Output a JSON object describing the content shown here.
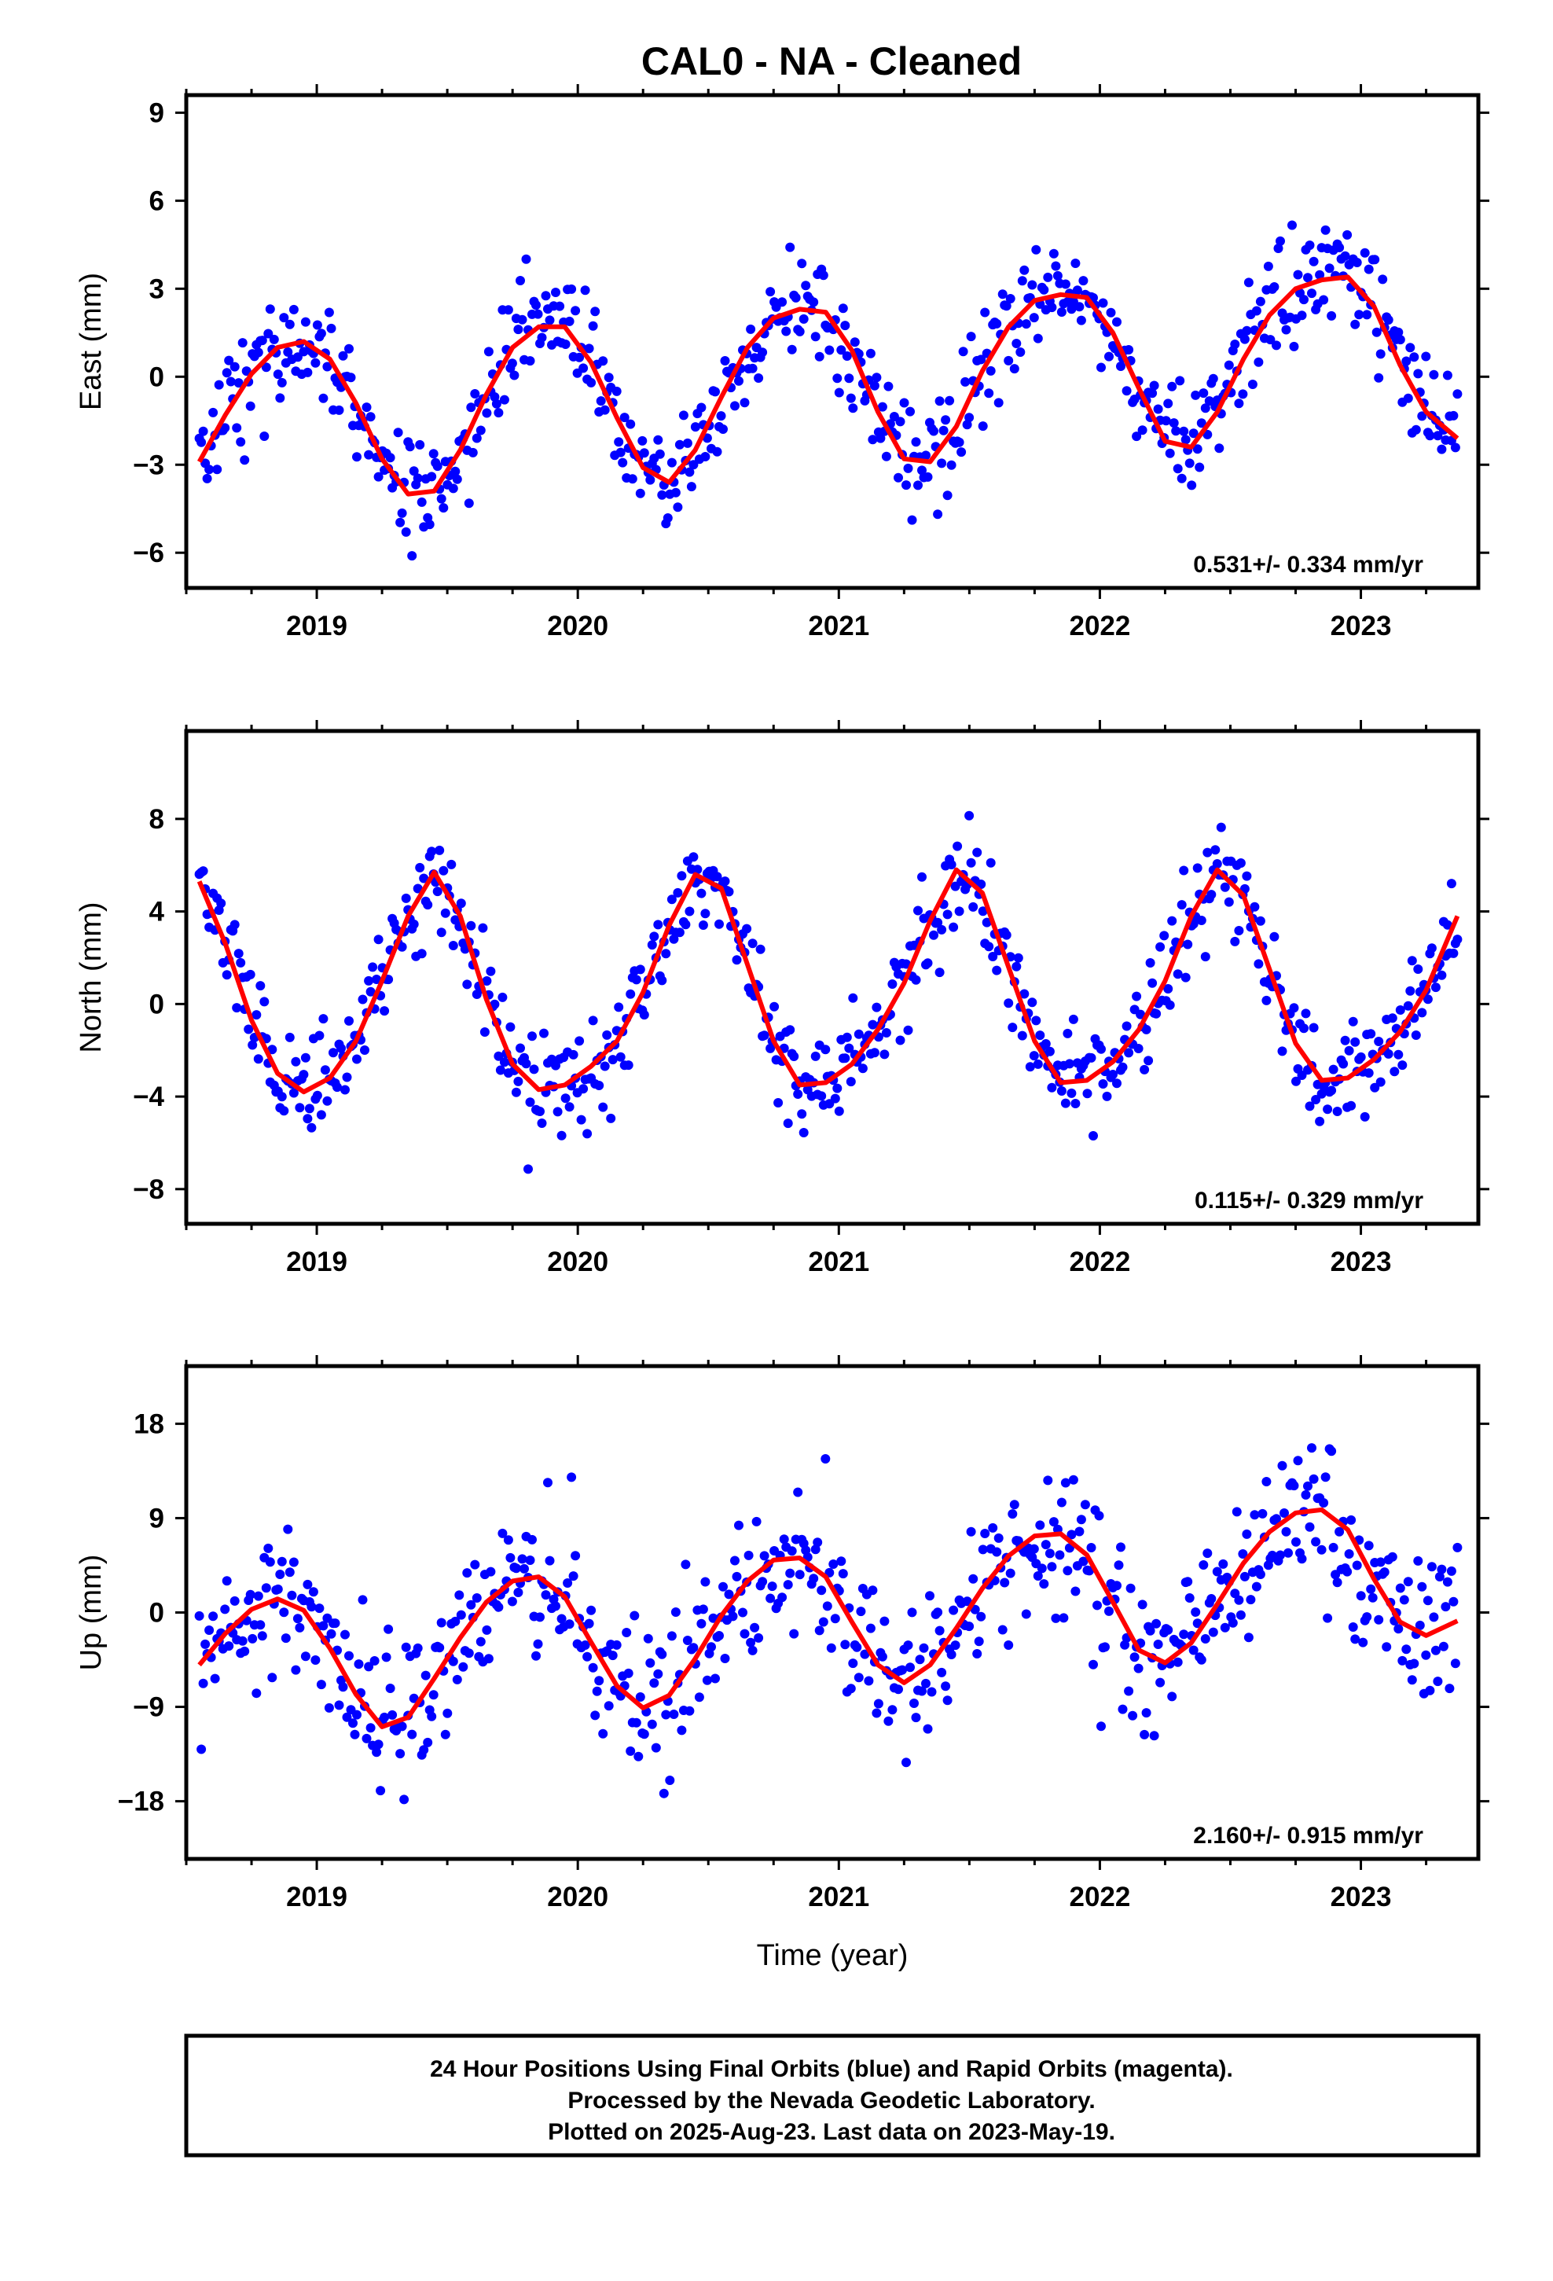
{
  "title": "CAL0  - NA - Cleaned",
  "footer": {
    "line1": "24 Hour Positions Using Final Orbits (blue) and Rapid Orbits (magenta).",
    "line2": "Processed by the Nevada Geodetic Laboratory.",
    "line3": "Plotted on 2025-Aug-23. Last data on 2023-May-19."
  },
  "colors": {
    "observations": "#0000ff",
    "fit": "#ff0000",
    "frame": "#000000"
  },
  "chart_data": [
    {
      "type": "scatter",
      "component": "east",
      "ylabel": "East (mm)",
      "xlabel": "",
      "xlim": [
        2018.5,
        2023.45
      ],
      "ylim": [
        -7.2,
        9.6
      ],
      "yticks": [
        -6,
        -3,
        0,
        3,
        6,
        9
      ],
      "xticks": [
        2019,
        2020,
        2021,
        2022,
        2023
      ],
      "rate_label": "0.531+/- 0.334 mm/yr",
      "grid": false,
      "fit": {
        "x": [
          2018.55,
          2018.65,
          2018.75,
          2018.85,
          2018.95,
          2019.05,
          2019.15,
          2019.25,
          2019.35,
          2019.45,
          2019.55,
          2019.65,
          2019.75,
          2019.85,
          2019.95,
          2020.05,
          2020.15,
          2020.25,
          2020.35,
          2020.45,
          2020.55,
          2020.65,
          2020.75,
          2020.85,
          2020.95,
          2021.05,
          2021.15,
          2021.25,
          2021.35,
          2021.45,
          2021.55,
          2021.65,
          2021.75,
          2021.85,
          2021.95,
          2022.05,
          2022.15,
          2022.25,
          2022.35,
          2022.45,
          2022.55,
          2022.65,
          2022.75,
          2022.85,
          2022.95,
          2023.05,
          2023.15,
          2023.25,
          2023.37
        ],
        "y": [
          -2.9,
          -1.3,
          0.1,
          1.0,
          1.2,
          0.6,
          -0.9,
          -2.8,
          -4.0,
          -3.9,
          -2.5,
          -0.6,
          1.0,
          1.7,
          1.7,
          0.5,
          -1.4,
          -3.1,
          -3.6,
          -2.5,
          -0.7,
          1.0,
          2.0,
          2.3,
          2.2,
          0.9,
          -1.2,
          -2.8,
          -2.9,
          -1.7,
          0.2,
          1.7,
          2.6,
          2.8,
          2.7,
          1.5,
          -0.4,
          -2.2,
          -2.4,
          -1.2,
          0.6,
          2.1,
          3.0,
          3.3,
          3.4,
          2.4,
          0.4,
          -1.2,
          -2.1
        ]
      },
      "points": {
        "generated_from_fit": true,
        "count": 640,
        "scatter_mm": 0.95
      }
    },
    {
      "type": "scatter",
      "component": "north",
      "ylabel": "North (mm)",
      "xlabel": "",
      "xlim": [
        2018.5,
        2023.45
      ],
      "ylim": [
        -9.5,
        11.8
      ],
      "yticks": [
        -8,
        -4,
        0,
        4,
        8
      ],
      "xticks": [
        2019,
        2020,
        2021,
        2022,
        2023
      ],
      "rate_label": "0.115+/- 0.329 mm/yr",
      "grid": false,
      "fit": {
        "x": [
          2018.55,
          2018.65,
          2018.75,
          2018.85,
          2018.95,
          2019.05,
          2019.15,
          2019.25,
          2019.35,
          2019.45,
          2019.55,
          2019.65,
          2019.75,
          2019.85,
          2019.95,
          2020.05,
          2020.15,
          2020.25,
          2020.35,
          2020.45,
          2020.55,
          2020.65,
          2020.75,
          2020.85,
          2020.95,
          2021.05,
          2021.15,
          2021.25,
          2021.35,
          2021.45,
          2021.55,
          2021.65,
          2021.75,
          2021.85,
          2021.95,
          2022.05,
          2022.15,
          2022.25,
          2022.35,
          2022.45,
          2022.55,
          2022.65,
          2022.75,
          2022.85,
          2022.95,
          2023.05,
          2023.15,
          2023.25,
          2023.37
        ],
        "y": [
          5.3,
          2.6,
          -0.7,
          -3.0,
          -3.8,
          -3.2,
          -1.6,
          1.0,
          3.8,
          5.7,
          3.8,
          0.2,
          -2.6,
          -3.7,
          -3.5,
          -2.7,
          -1.6,
          0.5,
          3.4,
          5.6,
          5.0,
          1.7,
          -1.6,
          -3.5,
          -3.4,
          -2.6,
          -1.1,
          0.9,
          3.6,
          5.8,
          4.8,
          1.6,
          -1.6,
          -3.4,
          -3.3,
          -2.5,
          -1.1,
          1.0,
          3.8,
          5.8,
          4.7,
          1.5,
          -1.7,
          -3.3,
          -3.2,
          -2.4,
          -1.2,
          0.6,
          3.8
        ]
      },
      "points": {
        "generated_from_fit": true,
        "count": 640,
        "scatter_mm": 1.1
      }
    },
    {
      "type": "scatter",
      "component": "up",
      "ylabel": "Up (mm)",
      "xlabel": "Time (year)",
      "xlim": [
        2018.5,
        2023.45
      ],
      "ylim": [
        -23.5,
        23.5
      ],
      "yticks": [
        -18,
        -9,
        0,
        9,
        18
      ],
      "xticks": [
        2019,
        2020,
        2021,
        2022,
        2023
      ],
      "rate_label": "2.160+/- 0.915 mm/yr",
      "grid": false,
      "fit": {
        "x": [
          2018.55,
          2018.65,
          2018.75,
          2018.85,
          2018.95,
          2019.05,
          2019.15,
          2019.25,
          2019.35,
          2019.45,
          2019.55,
          2019.65,
          2019.75,
          2019.85,
          2019.95,
          2020.05,
          2020.15,
          2020.25,
          2020.35,
          2020.45,
          2020.55,
          2020.65,
          2020.75,
          2020.85,
          2020.95,
          2021.05,
          2021.15,
          2021.25,
          2021.35,
          2021.45,
          2021.55,
          2021.65,
          2021.75,
          2021.85,
          2021.95,
          2022.05,
          2022.15,
          2022.25,
          2022.35,
          2022.45,
          2022.55,
          2022.65,
          2022.75,
          2022.85,
          2022.95,
          2023.05,
          2023.15,
          2023.25,
          2023.37
        ],
        "y": [
          -5.0,
          -2.0,
          0.3,
          1.3,
          0.2,
          -3.4,
          -7.8,
          -10.9,
          -10.0,
          -6.3,
          -2.4,
          1.0,
          3.0,
          3.4,
          1.5,
          -2.8,
          -7.0,
          -9.1,
          -7.9,
          -4.4,
          -0.3,
          3.0,
          5.0,
          5.2,
          3.4,
          -0.9,
          -5.0,
          -6.7,
          -5.0,
          -1.5,
          2.3,
          5.4,
          7.3,
          7.5,
          5.5,
          1.0,
          -3.6,
          -4.8,
          -2.9,
          0.8,
          4.7,
          7.7,
          9.5,
          9.8,
          7.9,
          3.2,
          -0.9,
          -2.2,
          -0.8
        ]
      },
      "points": {
        "generated_from_fit": true,
        "count": 640,
        "scatter_mm": 3.6
      }
    }
  ]
}
